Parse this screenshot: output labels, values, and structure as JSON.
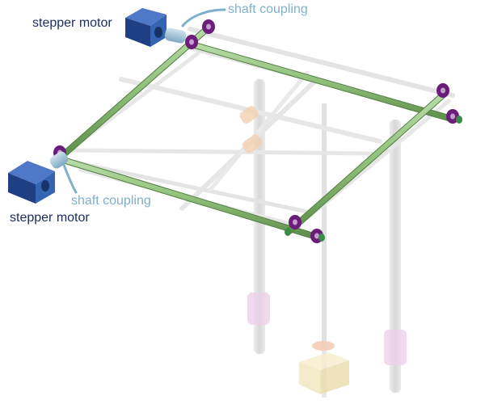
{
  "labels": {
    "motor_top": "stepper motor",
    "coupling_top": "shaft coupling",
    "coupling_bottom": "shaft coupling",
    "motor_bottom": "stepper motor"
  },
  "colors": {
    "label_motor": "#1b2f63",
    "label_coupling": "#7fb0cc",
    "motor_body": "#2a4f9a",
    "motor_face": "#3d6fc0",
    "rod_green": "#8fbf7a",
    "bearing_purple": "#6b1d7a",
    "frame_ghost": "#d9d9d9",
    "nut_ghost": "#f2c9a3",
    "block_ghost": "#efe3b7",
    "sleeve_ghost": "#e8c6e3"
  }
}
